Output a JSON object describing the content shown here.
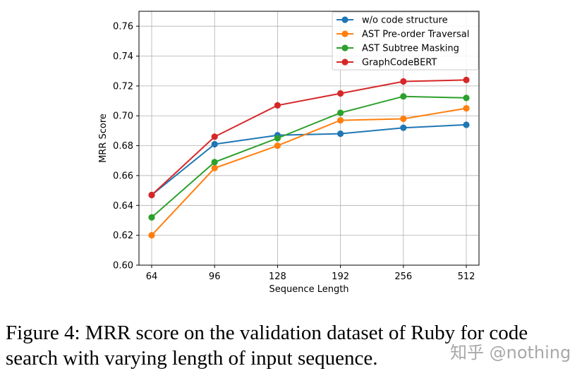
{
  "chart_data": {
    "type": "line",
    "title": "",
    "xlabel": "Sequence Length",
    "ylabel": "MRR Score",
    "categories": [
      "64",
      "96",
      "128",
      "192",
      "256",
      "512"
    ],
    "ylim": [
      0.6,
      0.77
    ],
    "yticks": [
      "0.60",
      "0.62",
      "0.64",
      "0.66",
      "0.68",
      "0.70",
      "0.72",
      "0.74",
      "0.76"
    ],
    "grid": true,
    "legend_position": "top-right",
    "series": [
      {
        "name": "w/o code structure",
        "color": "#1f77b4",
        "values": [
          0.647,
          0.681,
          0.687,
          0.688,
          0.692,
          0.694
        ]
      },
      {
        "name": "AST Pre-order Traversal",
        "color": "#ff7f0e",
        "values": [
          0.62,
          0.665,
          0.68,
          0.697,
          0.698,
          0.705
        ]
      },
      {
        "name": "AST Subtree Masking",
        "color": "#2ca02c",
        "values": [
          0.632,
          0.669,
          0.685,
          0.702,
          0.713,
          0.712
        ]
      },
      {
        "name": "GraphCodeBERT",
        "color": "#d62728",
        "values": [
          0.647,
          0.686,
          0.707,
          0.715,
          0.723,
          0.724
        ]
      }
    ]
  },
  "caption": {
    "text": "Figure 4:  MRR score on the validation dataset of Ruby for code search with varying length of input sequence."
  },
  "watermark": {
    "text": "知乎 @nothing"
  }
}
